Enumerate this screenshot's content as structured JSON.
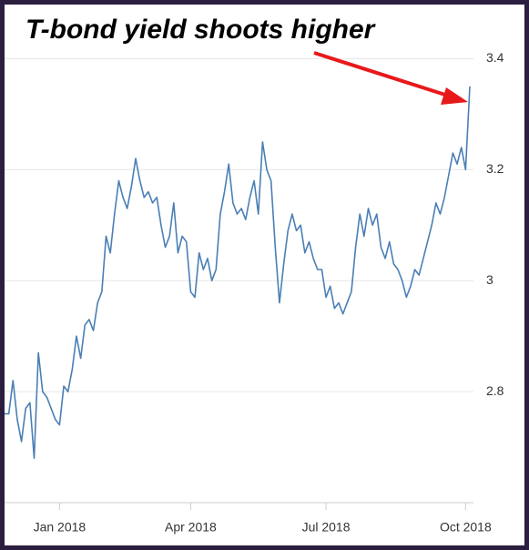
{
  "chart_data": {
    "type": "line",
    "title": "T-bond yield shoots higher",
    "series": [
      {
        "color": "#4a7fb5",
        "values": [
          2.76,
          2.76,
          2.82,
          2.75,
          2.71,
          2.77,
          2.78,
          2.68,
          2.87,
          2.8,
          2.79,
          2.77,
          2.75,
          2.74,
          2.81,
          2.8,
          2.84,
          2.9,
          2.86,
          2.92,
          2.93,
          2.91,
          2.96,
          2.98,
          3.08,
          3.05,
          3.12,
          3.18,
          3.15,
          3.13,
          3.17,
          3.22,
          3.18,
          3.15,
          3.16,
          3.14,
          3.15,
          3.1,
          3.06,
          3.08,
          3.14,
          3.05,
          3.08,
          3.07,
          2.98,
          2.97,
          3.05,
          3.02,
          3.04,
          3.0,
          3.02,
          3.12,
          3.16,
          3.21,
          3.14,
          3.12,
          3.13,
          3.11,
          3.15,
          3.18,
          3.12,
          3.25,
          3.2,
          3.18,
          3.06,
          2.96,
          3.03,
          3.09,
          3.12,
          3.09,
          3.1,
          3.05,
          3.07,
          3.04,
          3.02,
          3.02,
          2.97,
          2.99,
          2.95,
          2.96,
          2.94,
          2.96,
          2.98,
          3.06,
          3.12,
          3.08,
          3.13,
          3.1,
          3.12,
          3.06,
          3.04,
          3.07,
          3.03,
          3.02,
          3.0,
          2.97,
          2.99,
          3.02,
          3.01,
          3.04,
          3.07,
          3.1,
          3.14,
          3.12,
          3.15,
          3.19,
          3.23,
          3.21,
          3.24,
          3.2,
          3.35
        ]
      }
    ],
    "xticks": [
      {
        "value": 13,
        "label": "Jan 2018"
      },
      {
        "value": 44,
        "label": "Apr 2018"
      },
      {
        "value": 76,
        "label": "Jul 2018"
      },
      {
        "value": 109,
        "label": "Oct 2018"
      }
    ],
    "ylim": [
      2.6,
      3.44
    ],
    "yticks": [
      2.8,
      3,
      3.2,
      3.4
    ],
    "grid": true
  }
}
